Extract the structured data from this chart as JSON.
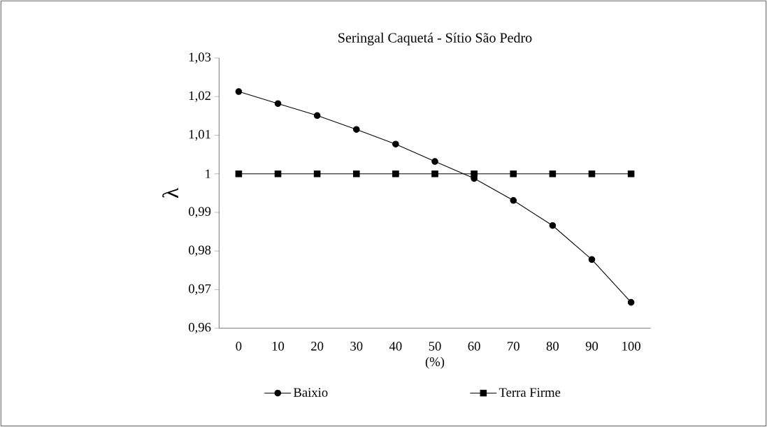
{
  "chart_data": {
    "type": "line",
    "title": "Seringal Caquetá - Sítio São Pedro",
    "xlabel": "(%)",
    "ylabel": "λ",
    "categories": [
      "0",
      "10",
      "20",
      "30",
      "40",
      "50",
      "60",
      "70",
      "80",
      "90",
      "100"
    ],
    "series": [
      {
        "name": "Baixio",
        "color": "#000000",
        "marker": "circle",
        "values": [
          1.0213,
          1.0182,
          1.0151,
          1.0115,
          1.0077,
          1.0032,
          0.9988,
          0.9931,
          0.9866,
          0.9778,
          0.9667
        ]
      },
      {
        "name": "Terra Firme",
        "color": "#000000",
        "marker": "square",
        "values": [
          1,
          1,
          1,
          1,
          1,
          1,
          1,
          1,
          1,
          1,
          1
        ]
      }
    ],
    "ylim": [
      0.96,
      1.03
    ],
    "yticks": [
      {
        "value": 0.96,
        "label": "0,96"
      },
      {
        "value": 0.97,
        "label": "0,97"
      },
      {
        "value": 0.98,
        "label": "0,98"
      },
      {
        "value": 0.99,
        "label": "0,99"
      },
      1,
      {
        "value": 1.01,
        "label": "1,01"
      },
      {
        "value": 1.02,
        "label": "1,02"
      },
      {
        "value": 1.03,
        "label": "1,03"
      }
    ],
    "legend": "bottom",
    "grid": false,
    "line_style": "solid"
  }
}
